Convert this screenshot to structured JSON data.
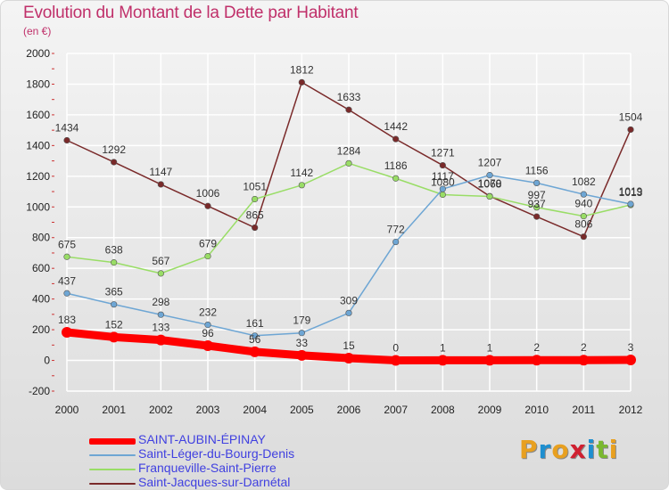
{
  "title": "Evolution du Montant de la Dette par Habitant",
  "unit_label": "(en €)",
  "brand": {
    "letters": [
      "P",
      "r",
      "o",
      "x",
      "i",
      "t",
      "i"
    ],
    "colors": [
      "#e8a020",
      "#1e8fd0",
      "#e8a020",
      "#d02030",
      "#1e8fd0",
      "#7ab830",
      "#e8a020"
    ]
  },
  "chart_data": {
    "type": "line",
    "x": [
      "2000",
      "2001",
      "2002",
      "2003",
      "2004",
      "2005",
      "2006",
      "2007",
      "2008",
      "2009",
      "2010",
      "2011",
      "2012"
    ],
    "ylim": [
      -200,
      2000
    ],
    "yticks": [
      "-200",
      "0",
      "200",
      "400",
      "600",
      "800",
      "1000",
      "1200",
      "1400",
      "1600",
      "1800",
      "2000"
    ],
    "grid": true,
    "legend_position": "bottom-left",
    "series": [
      {
        "name": "SAINT-AUBIN-ÉPINAY",
        "color": "#ff0000",
        "values": [
          183,
          152,
          133,
          96,
          56,
          33,
          15,
          0,
          1,
          1,
          2,
          2,
          3
        ],
        "labels": [
          "183",
          "152",
          "133",
          "96",
          "56",
          "33",
          "15",
          "0",
          "1",
          "1",
          "2",
          "2",
          "3"
        ]
      },
      {
        "name": "Saint-Léger-du-Bourg-Denis",
        "color": "#6ea6d4",
        "values": [
          437,
          365,
          298,
          232,
          161,
          179,
          309,
          772,
          1117,
          1207,
          1156,
          1082,
          1019
        ],
        "labels": [
          "437",
          "365",
          "298",
          "232",
          "161",
          "179",
          "309",
          "772",
          "1117",
          "1207",
          "1156",
          "1082",
          "1019"
        ]
      },
      {
        "name": "Franqueville-Saint-Pierre",
        "color": "#99dd66",
        "values": [
          675,
          638,
          567,
          679,
          1051,
          1142,
          1284,
          1186,
          1080,
          1068,
          997,
          940,
          1013
        ],
        "labels": [
          "675",
          "638",
          "567",
          "679",
          "1051",
          "1142",
          "1284",
          "1186",
          "1080",
          "1068",
          "997",
          "940",
          "1013"
        ]
      },
      {
        "name": "Saint-Jacques-sur-Darnétal",
        "color": "#7a2a2a",
        "values": [
          1434,
          1292,
          1147,
          1006,
          865,
          1812,
          1633,
          1442,
          1271,
          1070,
          937,
          806,
          1504
        ],
        "labels": [
          "1434",
          "1292",
          "1147",
          "1006",
          "865",
          "1812",
          "1633",
          "1442",
          "1271",
          "1070",
          "937",
          "806",
          "1504"
        ]
      }
    ]
  }
}
